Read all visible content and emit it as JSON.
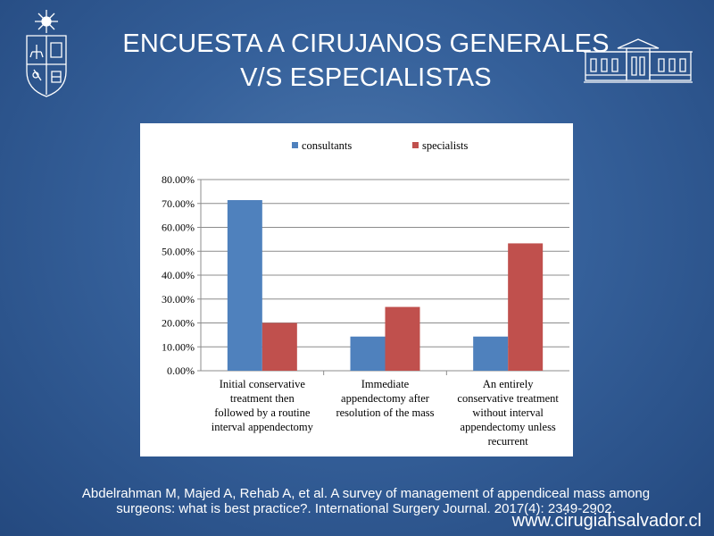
{
  "slide": {
    "title_line1": "ENCUESTA A CIRUJANOS GENERALES",
    "title_line2": "V/S ESPECIALISTAS",
    "citation_line1": "Abdelrahman M, Majed A, Rehab A, et al. A survey of management of appendiceal mass among",
    "citation_line2": "surgeons: what is best practice?. International Surgery Journal. 2017(4): 2349-2902.",
    "website": "www.cirugiahsalvador.cl"
  },
  "icons": {
    "left_logo": "university-crest-icon",
    "right_logo": "building-facade-icon"
  },
  "colors": {
    "background": "#2f5a94",
    "consultants": "#4f81bd",
    "specialists": "#c0504d"
  },
  "chart_data": {
    "type": "bar",
    "categories": [
      [
        "Initial conservative",
        "treatment then",
        "followed by a routine",
        "interval appendectomy"
      ],
      [
        "Immediate",
        "appendectomy after",
        "resolution of the mass"
      ],
      [
        "An entirely",
        "conservative treatment",
        "without interval",
        "appendectomy unless",
        "recurrent"
      ]
    ],
    "series": [
      {
        "name": "consultants",
        "color": "#4f81bd",
        "values": [
          71.4,
          14.3,
          14.3
        ]
      },
      {
        "name": "specialists",
        "color": "#c0504d",
        "values": [
          20.0,
          26.7,
          53.3
        ]
      }
    ],
    "y_ticks": [
      "0.00%",
      "10.00%",
      "20.00%",
      "30.00%",
      "40.00%",
      "50.00%",
      "60.00%",
      "70.00%",
      "80.00%"
    ],
    "ylim": [
      0,
      80
    ],
    "grid": true,
    "legend_position": "top",
    "title": "",
    "xlabel": "",
    "ylabel": ""
  }
}
